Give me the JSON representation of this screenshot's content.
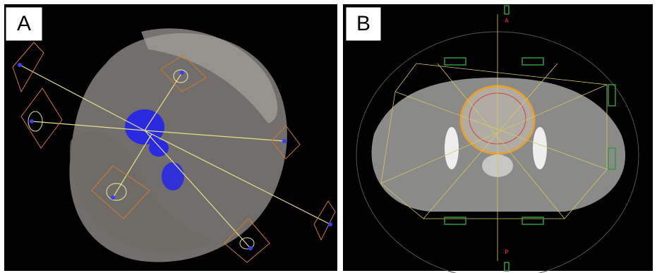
{
  "panels": [
    {
      "label": "A"
    },
    {
      "label": "B",
      "markers": [
        "A",
        "P"
      ]
    }
  ]
}
